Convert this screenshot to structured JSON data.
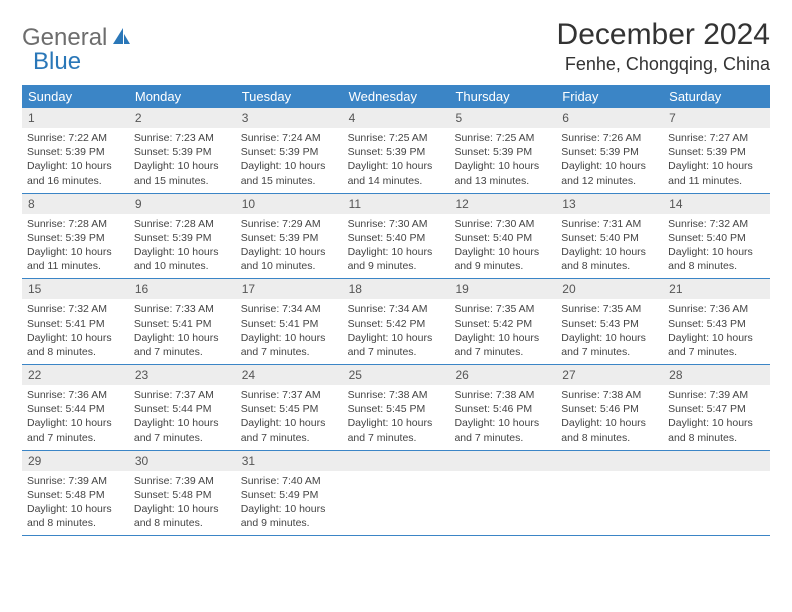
{
  "logo": {
    "part1": "General",
    "part2": "Blue"
  },
  "title": "December 2024",
  "location": "Fenhe, Chongqing, China",
  "colors": {
    "header_bg": "#3b85c6",
    "header_fg": "#ffffff",
    "daynum_bg": "#ededed",
    "border": "#3b85c6",
    "logo_gray": "#6d6d6d",
    "logo_blue": "#2a77b8"
  },
  "dow": [
    "Sunday",
    "Monday",
    "Tuesday",
    "Wednesday",
    "Thursday",
    "Friday",
    "Saturday"
  ],
  "weeks": [
    [
      {
        "n": "1",
        "sr": "7:22 AM",
        "ss": "5:39 PM",
        "dl": "10 hours and 16 minutes."
      },
      {
        "n": "2",
        "sr": "7:23 AM",
        "ss": "5:39 PM",
        "dl": "10 hours and 15 minutes."
      },
      {
        "n": "3",
        "sr": "7:24 AM",
        "ss": "5:39 PM",
        "dl": "10 hours and 15 minutes."
      },
      {
        "n": "4",
        "sr": "7:25 AM",
        "ss": "5:39 PM",
        "dl": "10 hours and 14 minutes."
      },
      {
        "n": "5",
        "sr": "7:25 AM",
        "ss": "5:39 PM",
        "dl": "10 hours and 13 minutes."
      },
      {
        "n": "6",
        "sr": "7:26 AM",
        "ss": "5:39 PM",
        "dl": "10 hours and 12 minutes."
      },
      {
        "n": "7",
        "sr": "7:27 AM",
        "ss": "5:39 PM",
        "dl": "10 hours and 11 minutes."
      }
    ],
    [
      {
        "n": "8",
        "sr": "7:28 AM",
        "ss": "5:39 PM",
        "dl": "10 hours and 11 minutes."
      },
      {
        "n": "9",
        "sr": "7:28 AM",
        "ss": "5:39 PM",
        "dl": "10 hours and 10 minutes."
      },
      {
        "n": "10",
        "sr": "7:29 AM",
        "ss": "5:39 PM",
        "dl": "10 hours and 10 minutes."
      },
      {
        "n": "11",
        "sr": "7:30 AM",
        "ss": "5:40 PM",
        "dl": "10 hours and 9 minutes."
      },
      {
        "n": "12",
        "sr": "7:30 AM",
        "ss": "5:40 PM",
        "dl": "10 hours and 9 minutes."
      },
      {
        "n": "13",
        "sr": "7:31 AM",
        "ss": "5:40 PM",
        "dl": "10 hours and 8 minutes."
      },
      {
        "n": "14",
        "sr": "7:32 AM",
        "ss": "5:40 PM",
        "dl": "10 hours and 8 minutes."
      }
    ],
    [
      {
        "n": "15",
        "sr": "7:32 AM",
        "ss": "5:41 PM",
        "dl": "10 hours and 8 minutes."
      },
      {
        "n": "16",
        "sr": "7:33 AM",
        "ss": "5:41 PM",
        "dl": "10 hours and 7 minutes."
      },
      {
        "n": "17",
        "sr": "7:34 AM",
        "ss": "5:41 PM",
        "dl": "10 hours and 7 minutes."
      },
      {
        "n": "18",
        "sr": "7:34 AM",
        "ss": "5:42 PM",
        "dl": "10 hours and 7 minutes."
      },
      {
        "n": "19",
        "sr": "7:35 AM",
        "ss": "5:42 PM",
        "dl": "10 hours and 7 minutes."
      },
      {
        "n": "20",
        "sr": "7:35 AM",
        "ss": "5:43 PM",
        "dl": "10 hours and 7 minutes."
      },
      {
        "n": "21",
        "sr": "7:36 AM",
        "ss": "5:43 PM",
        "dl": "10 hours and 7 minutes."
      }
    ],
    [
      {
        "n": "22",
        "sr": "7:36 AM",
        "ss": "5:44 PM",
        "dl": "10 hours and 7 minutes."
      },
      {
        "n": "23",
        "sr": "7:37 AM",
        "ss": "5:44 PM",
        "dl": "10 hours and 7 minutes."
      },
      {
        "n": "24",
        "sr": "7:37 AM",
        "ss": "5:45 PM",
        "dl": "10 hours and 7 minutes."
      },
      {
        "n": "25",
        "sr": "7:38 AM",
        "ss": "5:45 PM",
        "dl": "10 hours and 7 minutes."
      },
      {
        "n": "26",
        "sr": "7:38 AM",
        "ss": "5:46 PM",
        "dl": "10 hours and 7 minutes."
      },
      {
        "n": "27",
        "sr": "7:38 AM",
        "ss": "5:46 PM",
        "dl": "10 hours and 8 minutes."
      },
      {
        "n": "28",
        "sr": "7:39 AM",
        "ss": "5:47 PM",
        "dl": "10 hours and 8 minutes."
      }
    ],
    [
      {
        "n": "29",
        "sr": "7:39 AM",
        "ss": "5:48 PM",
        "dl": "10 hours and 8 minutes."
      },
      {
        "n": "30",
        "sr": "7:39 AM",
        "ss": "5:48 PM",
        "dl": "10 hours and 8 minutes."
      },
      {
        "n": "31",
        "sr": "7:40 AM",
        "ss": "5:49 PM",
        "dl": "10 hours and 9 minutes."
      },
      {
        "empty": true
      },
      {
        "empty": true
      },
      {
        "empty": true
      },
      {
        "empty": true
      }
    ]
  ],
  "labels": {
    "sunrise": "Sunrise:",
    "sunset": "Sunset:",
    "daylight": "Daylight:"
  }
}
